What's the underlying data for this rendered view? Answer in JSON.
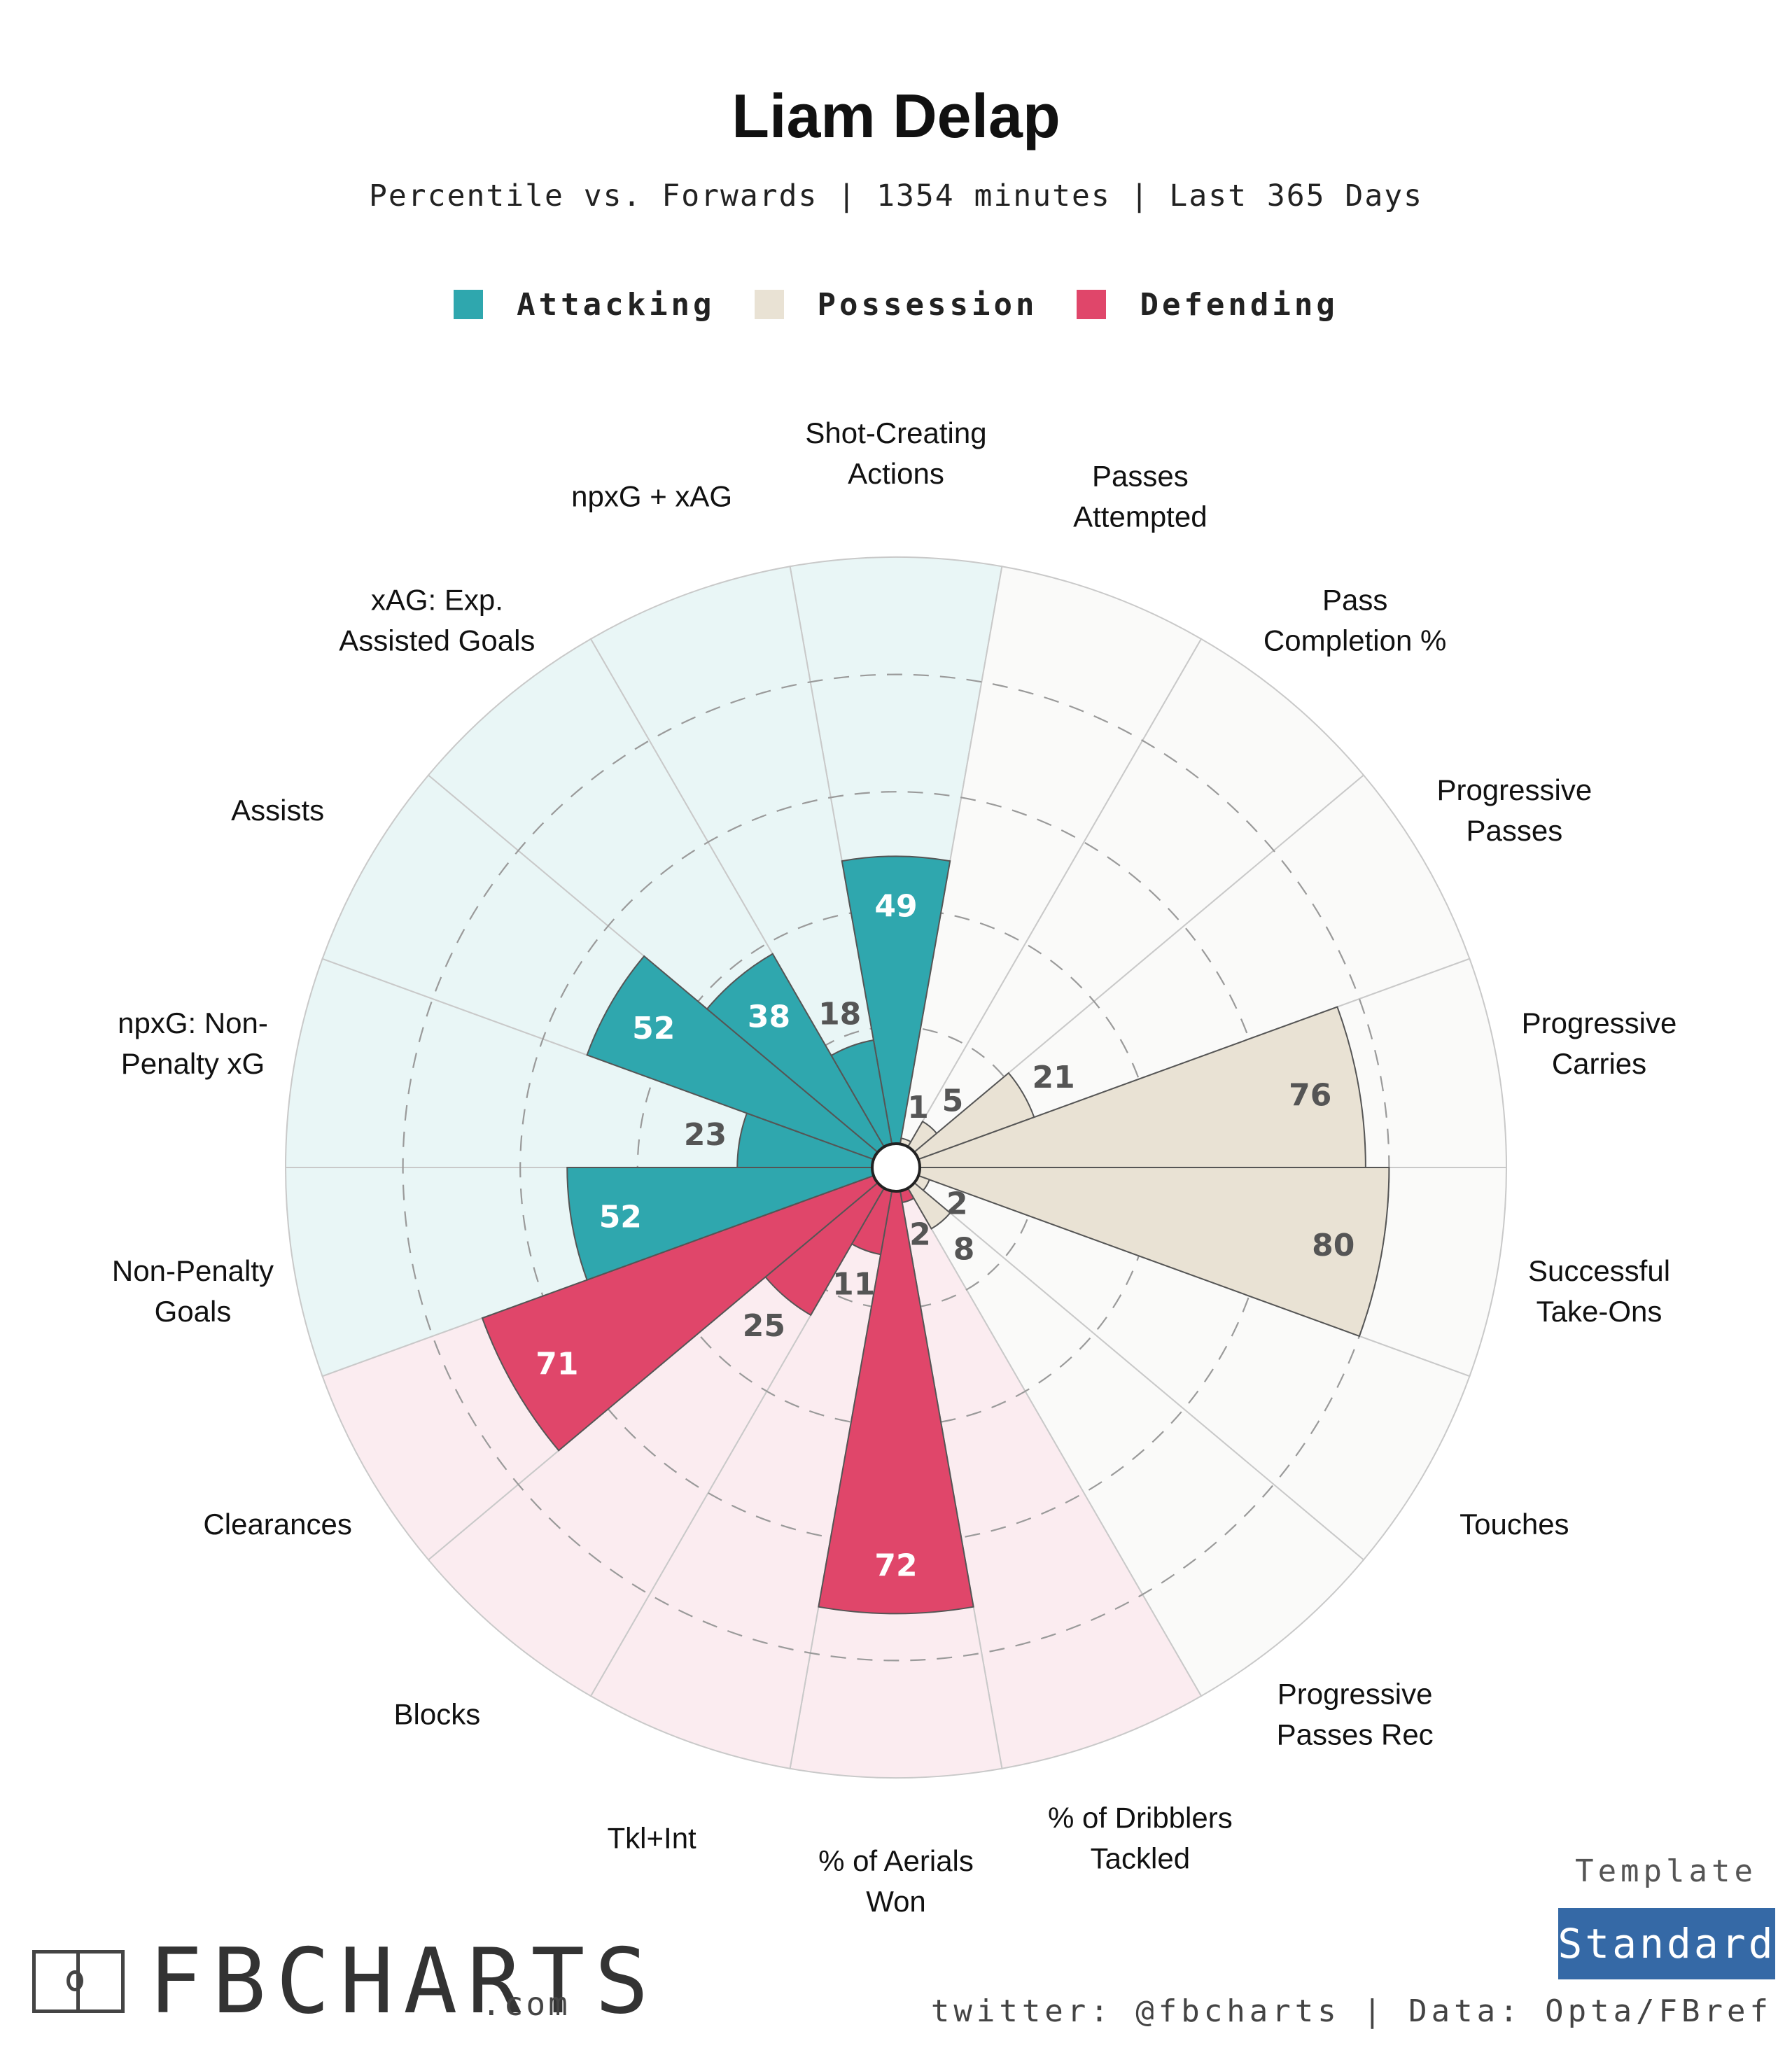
{
  "chart_data": {
    "type": "polar-bar",
    "title": "Liam Delap",
    "subtitle": "Percentile vs. Forwards | 1354 minutes | Last 365 Days",
    "range": [
      0,
      100
    ],
    "grid": true,
    "legend_position": "top-center",
    "groups": [
      {
        "name": "Attacking",
        "color": "#2fa7ae",
        "background": "#e9f6f6"
      },
      {
        "name": "Possession",
        "color": "#e9e2d4",
        "background": "#fafaf9"
      },
      {
        "name": "Defending",
        "color": "#e0466a",
        "background": "#fbecf0"
      }
    ],
    "metrics": [
      {
        "label": [
          "Shot-Creating",
          "Actions"
        ],
        "value": 49,
        "group": "Attacking"
      },
      {
        "label": [
          "Passes",
          "Attempted"
        ],
        "value": 1,
        "group": "Possession"
      },
      {
        "label": [
          "Pass",
          "Completion %"
        ],
        "value": 5,
        "group": "Possession"
      },
      {
        "label": [
          "Progressive",
          "Passes"
        ],
        "value": 21,
        "group": "Possession"
      },
      {
        "label": [
          "Progressive",
          "Carries"
        ],
        "value": 76,
        "group": "Possession"
      },
      {
        "label": [
          "Successful",
          "Take-Ons"
        ],
        "value": 80,
        "group": "Possession"
      },
      {
        "label": [
          "Touches"
        ],
        "value": 2,
        "group": "Possession"
      },
      {
        "label": [
          "Progressive",
          "Passes Rec"
        ],
        "value": 8,
        "group": "Possession"
      },
      {
        "label": [
          "% of Dribblers",
          "Tackled"
        ],
        "value": 2,
        "group": "Defending"
      },
      {
        "label": [
          "% of Aerials",
          "Won"
        ],
        "value": 72,
        "group": "Defending"
      },
      {
        "label": [
          "Tkl+Int"
        ],
        "value": 11,
        "group": "Defending"
      },
      {
        "label": [
          "Blocks"
        ],
        "value": 25,
        "group": "Defending"
      },
      {
        "label": [
          "Clearances"
        ],
        "value": 71,
        "group": "Defending"
      },
      {
        "label": [
          "Non-Penalty",
          "Goals"
        ],
        "value": 52,
        "group": "Attacking"
      },
      {
        "label": [
          "npxG: Non-",
          "Penalty xG"
        ],
        "value": 23,
        "group": "Attacking"
      },
      {
        "label": [
          "Assists"
        ],
        "value": 52,
        "group": "Attacking"
      },
      {
        "label": [
          "xAG: Exp.",
          "Assisted Goals"
        ],
        "value": 38,
        "group": "Attacking"
      },
      {
        "label": [
          "npxG + xAG"
        ],
        "value": 18,
        "group": "Attacking"
      }
    ]
  },
  "branding": {
    "logo_text": "FBCHARTS",
    "logo_domain": ".com",
    "template_label": "Template",
    "template_value": "Standard",
    "credit": "twitter: @fbcharts | Data: Opta/FBref"
  }
}
